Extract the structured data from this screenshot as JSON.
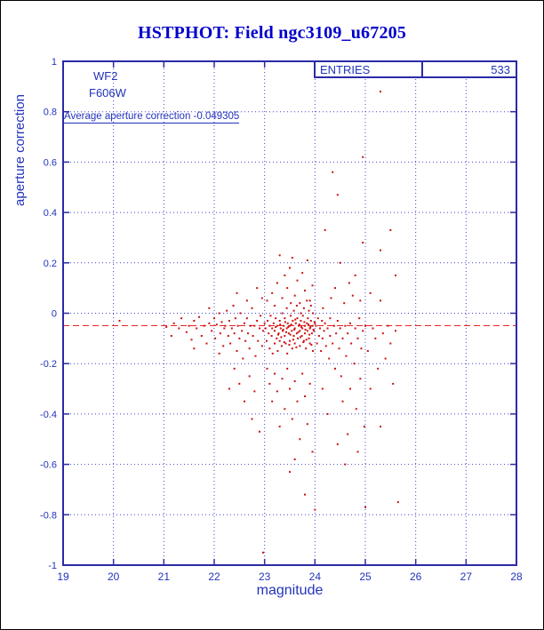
{
  "header": {
    "title": "HSTPHOT: Field ngc3109_u67205"
  },
  "colors": {
    "title": "#0000cc",
    "axis_text": "#2233bb",
    "frame": "#2a2aa8",
    "grid": "#4444cc",
    "marker": "#cc1111",
    "reference_line": "#ee2222"
  },
  "chart_data": {
    "type": "scatter",
    "title": "HSTPHOT: Field ngc3109_u67205",
    "xlabel": "magnitude",
    "ylabel": "aperture correction",
    "xlim": [
      19,
      28
    ],
    "ylim": [
      -1,
      1
    ],
    "x_ticks": [
      19,
      20,
      21,
      22,
      23,
      24,
      25,
      26,
      27,
      28
    ],
    "y_ticks": [
      -1,
      -0.8,
      -0.6,
      -0.4,
      -0.2,
      0,
      0.2,
      0.4,
      0.6,
      0.8,
      1
    ],
    "grid": true,
    "legend": "none",
    "detector_label": "WF2",
    "filter_label": "F606W",
    "annotation": "Average aperture correction -0.049305",
    "average_aperture_correction": -0.049305,
    "stats_box": {
      "label": "ENTRIES",
      "value": "533"
    },
    "entries": 533,
    "reference_line": {
      "y": -0.049305,
      "style": "dashed"
    },
    "points": [
      [
        20.12,
        -0.03
      ],
      [
        21.05,
        -0.055
      ],
      [
        21.15,
        -0.09
      ],
      [
        21.2,
        -0.04
      ],
      [
        21.3,
        -0.06
      ],
      [
        21.35,
        -0.02
      ],
      [
        21.45,
        -0.075
      ],
      [
        21.5,
        -0.05
      ],
      [
        21.55,
        -0.105
      ],
      [
        21.6,
        -0.03
      ],
      [
        21.6,
        -0.14
      ],
      [
        21.65,
        -0.06
      ],
      [
        21.7,
        -0.015
      ],
      [
        21.75,
        -0.09
      ],
      [
        21.8,
        -0.05
      ],
      [
        21.85,
        -0.12
      ],
      [
        21.9,
        -0.04
      ],
      [
        21.9,
        0.02
      ],
      [
        21.95,
        -0.07
      ],
      [
        22.0,
        -0.02
      ],
      [
        22.02,
        -0.1
      ],
      [
        22.05,
        -0.045
      ],
      [
        22.1,
        0.0
      ],
      [
        22.1,
        -0.16
      ],
      [
        22.12,
        -0.08
      ],
      [
        22.15,
        -0.035
      ],
      [
        22.18,
        -0.13
      ],
      [
        22.2,
        -0.06
      ],
      [
        22.22,
        -0.05
      ],
      [
        22.25,
        0.01
      ],
      [
        22.28,
        -0.09
      ],
      [
        22.3,
        -0.03
      ],
      [
        22.3,
        -0.3
      ],
      [
        22.32,
        -0.12
      ],
      [
        22.35,
        -0.06
      ],
      [
        22.38,
        0.03
      ],
      [
        22.4,
        -0.08
      ],
      [
        22.4,
        -0.22
      ],
      [
        22.42,
        -0.02
      ],
      [
        22.45,
        -0.15
      ],
      [
        22.45,
        0.08
      ],
      [
        22.47,
        -0.05
      ],
      [
        22.5,
        -0.1
      ],
      [
        22.5,
        -0.28
      ],
      [
        22.52,
        0.0
      ],
      [
        22.55,
        -0.07
      ],
      [
        22.57,
        -0.18
      ],
      [
        22.6,
        -0.04
      ],
      [
        22.6,
        -0.35
      ],
      [
        22.62,
        -0.11
      ],
      [
        22.65,
        -0.02
      ],
      [
        22.65,
        0.05
      ],
      [
        22.67,
        -0.08
      ],
      [
        22.7,
        -0.14
      ],
      [
        22.7,
        -0.25
      ],
      [
        22.72,
        -0.05
      ],
      [
        22.75,
        0.02
      ],
      [
        22.75,
        -0.42
      ],
      [
        22.77,
        -0.09
      ],
      [
        22.8,
        -0.05
      ],
      [
        22.8,
        -0.31
      ],
      [
        22.82,
        -0.17
      ],
      [
        22.85,
        -0.03
      ],
      [
        22.85,
        0.1
      ],
      [
        22.87,
        -0.11
      ],
      [
        22.9,
        -0.06
      ],
      [
        22.9,
        -0.47
      ],
      [
        22.92,
        -0.01
      ],
      [
        22.95,
        -0.13
      ],
      [
        22.95,
        0.06
      ],
      [
        22.97,
        -0.07
      ],
      [
        22.97,
        -0.95
      ],
      [
        23.0,
        -0.04
      ],
      [
        23.02,
        -0.06
      ],
      [
        23.04,
        -0.11
      ],
      [
        23.06,
        -0.03
      ],
      [
        23.08,
        -0.08
      ],
      [
        23.1,
        -0.05
      ],
      [
        23.1,
        -0.14
      ],
      [
        23.12,
        -0.01
      ],
      [
        23.14,
        -0.09
      ],
      [
        23.15,
        -0.06
      ],
      [
        23.16,
        -0.16
      ],
      [
        23.18,
        -0.04
      ],
      [
        23.2,
        -0.07
      ],
      [
        23.2,
        -0.12
      ],
      [
        23.22,
        -0.02
      ],
      [
        23.24,
        -0.1
      ],
      [
        23.25,
        -0.05
      ],
      [
        23.26,
        -0.15
      ],
      [
        23.28,
        -0.08
      ],
      [
        23.3,
        -0.03
      ],
      [
        23.3,
        -0.11
      ],
      [
        23.32,
        -0.06
      ],
      [
        23.34,
        -0.13
      ],
      [
        23.35,
        0.0
      ],
      [
        23.36,
        -0.07
      ],
      [
        23.38,
        -0.05
      ],
      [
        23.4,
        -0.09
      ],
      [
        23.4,
        -0.02
      ],
      [
        23.42,
        -0.12
      ],
      [
        23.44,
        -0.06
      ],
      [
        23.45,
        -0.16
      ],
      [
        23.46,
        -0.04
      ],
      [
        23.48,
        -0.08
      ],
      [
        23.5,
        -0.05
      ],
      [
        23.5,
        -0.11
      ],
      [
        23.52,
        -0.01
      ],
      [
        23.54,
        -0.07
      ],
      [
        23.55,
        -0.14
      ],
      [
        23.56,
        -0.03
      ],
      [
        23.58,
        -0.09
      ],
      [
        23.6,
        -0.06
      ],
      [
        23.6,
        -0.12
      ],
      [
        23.62,
        -0.04
      ],
      [
        23.64,
        -0.08
      ],
      [
        23.65,
        -0.02
      ],
      [
        23.66,
        -0.1
      ],
      [
        23.68,
        -0.05
      ],
      [
        23.7,
        -0.13
      ],
      [
        23.7,
        -0.07
      ],
      [
        23.72,
        -0.03
      ],
      [
        23.74,
        -0.09
      ],
      [
        23.75,
        -0.06
      ],
      [
        23.76,
        -0.01
      ],
      [
        23.78,
        -0.11
      ],
      [
        23.8,
        -0.05
      ],
      [
        23.8,
        -0.08
      ],
      [
        23.82,
        -0.14
      ],
      [
        23.84,
        -0.04
      ],
      [
        23.85,
        -0.07
      ],
      [
        23.86,
        -0.02
      ],
      [
        23.88,
        -0.1
      ],
      [
        23.9,
        -0.06
      ],
      [
        23.9,
        -0.12
      ],
      [
        23.92,
        -0.03
      ],
      [
        23.94,
        -0.08
      ],
      [
        23.95,
        -0.05
      ],
      [
        23.96,
        -0.15
      ],
      [
        23.98,
        -0.07
      ],
      [
        24.0,
        -0.04
      ],
      [
        23.22,
        -0.055
      ],
      [
        23.27,
        -0.085
      ],
      [
        23.31,
        -0.045
      ],
      [
        23.33,
        -0.095
      ],
      [
        23.37,
        -0.065
      ],
      [
        23.39,
        -0.115
      ],
      [
        23.41,
        -0.035
      ],
      [
        23.43,
        -0.075
      ],
      [
        23.47,
        -0.055
      ],
      [
        23.49,
        -0.125
      ],
      [
        23.51,
        -0.085
      ],
      [
        23.53,
        -0.045
      ],
      [
        23.57,
        -0.105
      ],
      [
        23.59,
        -0.065
      ],
      [
        23.61,
        -0.025
      ],
      [
        23.63,
        -0.135
      ],
      [
        23.67,
        -0.075
      ],
      [
        23.69,
        -0.045
      ],
      [
        23.71,
        -0.095
      ],
      [
        23.73,
        -0.055
      ],
      [
        23.77,
        -0.115
      ],
      [
        23.79,
        -0.035
      ],
      [
        23.81,
        -0.065
      ],
      [
        23.83,
        -0.105
      ],
      [
        23.87,
        -0.045
      ],
      [
        23.89,
        -0.085
      ],
      [
        23.91,
        -0.055
      ],
      [
        23.93,
        -0.125
      ],
      [
        23.97,
        -0.065
      ],
      [
        23.99,
        -0.035
      ],
      [
        23.44,
        0.02
      ],
      [
        23.52,
        0.04
      ],
      [
        23.58,
        0.01
      ],
      [
        23.64,
        0.03
      ],
      [
        23.72,
        0.0
      ],
      [
        23.78,
        0.02
      ],
      [
        23.84,
        0.05
      ],
      [
        23.88,
        0.01
      ],
      [
        23.92,
        0.03
      ],
      [
        23.96,
        0.0
      ],
      [
        23.05,
        0.05
      ],
      [
        23.15,
        0.08
      ],
      [
        23.2,
        0.03
      ],
      [
        23.25,
        0.12
      ],
      [
        23.3,
        0.23
      ],
      [
        23.35,
        0.06
      ],
      [
        23.4,
        0.15
      ],
      [
        23.45,
        0.1
      ],
      [
        23.5,
        0.18
      ],
      [
        23.55,
        0.22
      ],
      [
        23.6,
        0.07
      ],
      [
        23.65,
        0.13
      ],
      [
        23.7,
        0.04
      ],
      [
        23.75,
        0.16
      ],
      [
        23.8,
        0.09
      ],
      [
        23.85,
        0.21
      ],
      [
        23.9,
        0.05
      ],
      [
        23.95,
        0.11
      ],
      [
        23.05,
        -0.22
      ],
      [
        23.1,
        -0.28
      ],
      [
        23.15,
        -0.35
      ],
      [
        23.2,
        -0.24
      ],
      [
        23.25,
        -0.31
      ],
      [
        23.3,
        -0.45
      ],
      [
        23.35,
        -0.26
      ],
      [
        23.4,
        -0.38
      ],
      [
        23.45,
        -0.22
      ],
      [
        23.5,
        -0.3
      ],
      [
        23.5,
        -0.63
      ],
      [
        23.55,
        -0.42
      ],
      [
        23.6,
        -0.27
      ],
      [
        23.6,
        -0.58
      ],
      [
        23.65,
        -0.35
      ],
      [
        23.7,
        -0.5
      ],
      [
        23.75,
        -0.24
      ],
      [
        23.8,
        -0.33
      ],
      [
        23.8,
        -0.72
      ],
      [
        23.85,
        -0.44
      ],
      [
        23.9,
        -0.28
      ],
      [
        23.95,
        -0.55
      ],
      [
        24.0,
        -0.78
      ],
      [
        24.02,
        -0.05
      ],
      [
        24.04,
        -0.12
      ],
      [
        24.06,
        -0.02
      ],
      [
        24.08,
        -0.09
      ],
      [
        24.1,
        -0.06
      ],
      [
        24.12,
        -0.15
      ],
      [
        24.14,
        -0.03
      ],
      [
        24.15,
        -0.1
      ],
      [
        24.15,
        -0.3
      ],
      [
        24.16,
        0.02
      ],
      [
        24.18,
        -0.07
      ],
      [
        24.2,
        -0.04
      ],
      [
        24.2,
        0.33
      ],
      [
        24.22,
        -0.13
      ],
      [
        24.25,
        -0.06
      ],
      [
        24.25,
        -0.4
      ],
      [
        24.28,
        -0.18
      ],
      [
        24.3,
        -0.02
      ],
      [
        24.3,
        -0.09
      ],
      [
        24.32,
        0.06
      ],
      [
        24.35,
        0.56
      ],
      [
        24.35,
        -0.12
      ],
      [
        24.38,
        -0.05
      ],
      [
        24.4,
        -0.22
      ],
      [
        24.4,
        0.1
      ],
      [
        24.42,
        -0.08
      ],
      [
        24.45,
        -0.03
      ],
      [
        24.45,
        0.47
      ],
      [
        24.45,
        -0.52
      ],
      [
        24.48,
        -0.14
      ],
      [
        24.5,
        -0.06
      ],
      [
        24.5,
        0.2
      ],
      [
        24.52,
        -0.25
      ],
      [
        24.55,
        -0.1
      ],
      [
        24.55,
        -0.35
      ],
      [
        24.58,
        0.04
      ],
      [
        24.6,
        -0.6
      ],
      [
        24.6,
        -0.05
      ],
      [
        24.62,
        -0.17
      ],
      [
        24.65,
        -0.08
      ],
      [
        24.65,
        -0.48
      ],
      [
        24.68,
        0.12
      ],
      [
        24.7,
        -0.3
      ],
      [
        24.7,
        -0.04
      ],
      [
        24.72,
        -0.12
      ],
      [
        24.75,
        0.07
      ],
      [
        24.78,
        -0.2
      ],
      [
        24.8,
        -0.06
      ],
      [
        24.8,
        0.15
      ],
      [
        24.82,
        -0.38
      ],
      [
        24.85,
        -0.1
      ],
      [
        24.85,
        -0.55
      ],
      [
        24.88,
        -0.02
      ],
      [
        24.9,
        -0.26
      ],
      [
        24.9,
        0.05
      ],
      [
        24.92,
        -0.14
      ],
      [
        24.95,
        -0.07
      ],
      [
        24.95,
        0.28
      ],
      [
        24.98,
        -0.45
      ],
      [
        24.95,
        0.62
      ],
      [
        25.0,
        -0.05
      ],
      [
        25.0,
        -0.77
      ],
      [
        25.05,
        -0.15
      ],
      [
        25.1,
        0.08
      ],
      [
        25.1,
        -0.3
      ],
      [
        25.15,
        -0.06
      ],
      [
        25.3,
        0.88
      ],
      [
        25.2,
        -0.1
      ],
      [
        25.25,
        -0.22
      ],
      [
        25.3,
        0.05
      ],
      [
        25.3,
        0.25
      ],
      [
        25.3,
        -0.45
      ],
      [
        25.35,
        -0.08
      ],
      [
        25.4,
        -0.18
      ],
      [
        25.45,
        -0.05
      ],
      [
        25.5,
        0.33
      ],
      [
        25.5,
        -0.12
      ],
      [
        25.55,
        -0.28
      ],
      [
        25.6,
        -0.07
      ],
      [
        25.6,
        0.15
      ],
      [
        25.65,
        -0.75
      ]
    ]
  }
}
